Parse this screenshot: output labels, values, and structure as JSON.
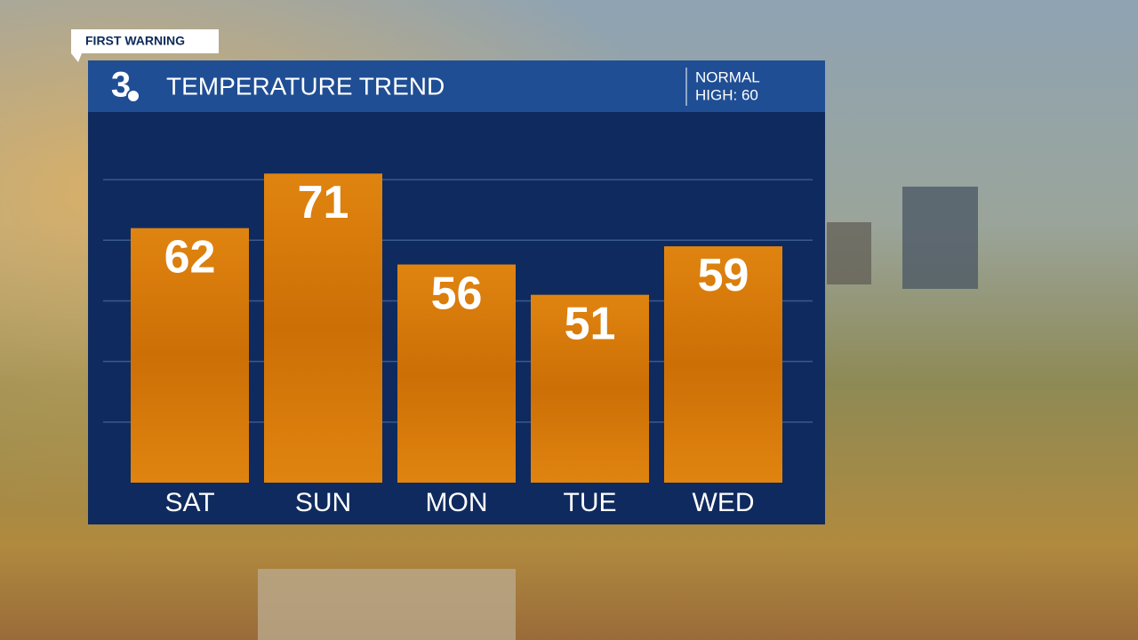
{
  "chart_data": {
    "type": "bar",
    "tag": "FIRST WARNING",
    "logo": "3",
    "title": "TEMPERATURE TREND",
    "annotations": [
      "NORMAL",
      "HIGH: 60"
    ],
    "categories": [
      "SAT",
      "SUN",
      "MON",
      "TUE",
      "WED"
    ],
    "values": [
      62,
      71,
      56,
      51,
      59
    ],
    "color": "#d97a0c",
    "ylim": [
      20,
      75
    ],
    "yticks": [
      30,
      40,
      50,
      60,
      70
    ],
    "grid": true
  }
}
